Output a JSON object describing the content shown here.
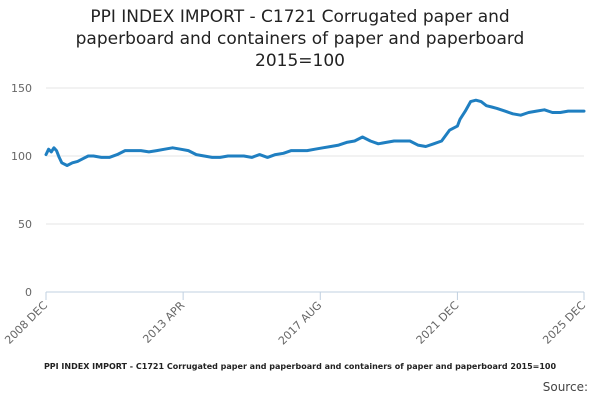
{
  "title_lines": [
    "PPI INDEX IMPORT - C1721 Corrugated paper and",
    "paperboard and containers of paper and paperboard",
    "2015=100"
  ],
  "legend_text": "PPI INDEX IMPORT - C1721 Corrugated paper and paperboard and containers of paper and paperboard 2015=100",
  "source_text": "Source:",
  "colors": {
    "series": "#1f7fc1",
    "grid": "#e6e6e6",
    "axis": "#c0d0e0",
    "tick_text": "#666666"
  },
  "chart_data": {
    "type": "line",
    "title": "PPI INDEX IMPORT - C1721 Corrugated paper and paperboard and containers of paper and paperboard 2015=100",
    "xlabel": "",
    "ylabel": "",
    "ylim": [
      0,
      150
    ],
    "yticks": [
      0,
      50,
      100,
      150
    ],
    "grid": true,
    "legend": "bottom",
    "xticks": [
      "2008 DEC",
      "2013 APR",
      "2017 AUG",
      "2021 DEC",
      "2025 DEC"
    ],
    "x_start": "2008-12",
    "x_end": "2025-12",
    "series": [
      {
        "name": "PPI INDEX IMPORT - C1721 Corrugated paper and paperboard and containers of paper and paperboard 2015=100",
        "x": [
          "2008-12",
          "2009-01",
          "2009-02",
          "2009-03",
          "2009-04",
          "2009-05",
          "2009-06",
          "2009-08",
          "2009-10",
          "2009-12",
          "2010-02",
          "2010-04",
          "2010-06",
          "2010-09",
          "2010-12",
          "2011-03",
          "2011-06",
          "2011-09",
          "2011-12",
          "2012-03",
          "2012-06",
          "2012-09",
          "2012-12",
          "2013-03",
          "2013-06",
          "2013-09",
          "2013-12",
          "2014-03",
          "2014-06",
          "2014-09",
          "2014-12",
          "2015-03",
          "2015-06",
          "2015-09",
          "2015-12",
          "2016-03",
          "2016-06",
          "2016-09",
          "2016-12",
          "2017-03",
          "2017-06",
          "2017-09",
          "2017-12",
          "2018-03",
          "2018-06",
          "2018-09",
          "2018-12",
          "2019-03",
          "2019-06",
          "2019-09",
          "2019-12",
          "2020-03",
          "2020-06",
          "2020-09",
          "2020-12",
          "2021-03",
          "2021-06",
          "2021-09",
          "2021-12",
          "2022-01",
          "2022-03",
          "2022-05",
          "2022-07",
          "2022-09",
          "2022-11",
          "2023-01",
          "2023-03",
          "2023-06",
          "2023-09",
          "2023-12",
          "2024-03",
          "2024-06",
          "2024-09",
          "2024-12",
          "2025-03",
          "2025-06",
          "2025-09",
          "2025-12"
        ],
        "y": [
          101,
          105,
          103,
          106,
          104,
          99,
          95,
          93,
          95,
          96,
          98,
          100,
          100,
          99,
          99,
          101,
          104,
          104,
          104,
          103,
          104,
          105,
          106,
          105,
          104,
          101,
          100,
          99,
          99,
          100,
          100,
          100,
          99,
          101,
          99,
          101,
          102,
          104,
          104,
          104,
          105,
          106,
          107,
          108,
          110,
          111,
          114,
          111,
          109,
          110,
          111,
          111,
          111,
          108,
          107,
          109,
          111,
          119,
          122,
          127,
          133,
          140,
          141,
          140,
          137,
          136,
          135,
          133,
          131,
          130,
          132,
          133,
          134,
          132,
          132,
          133,
          133,
          133
        ]
      }
    ]
  }
}
